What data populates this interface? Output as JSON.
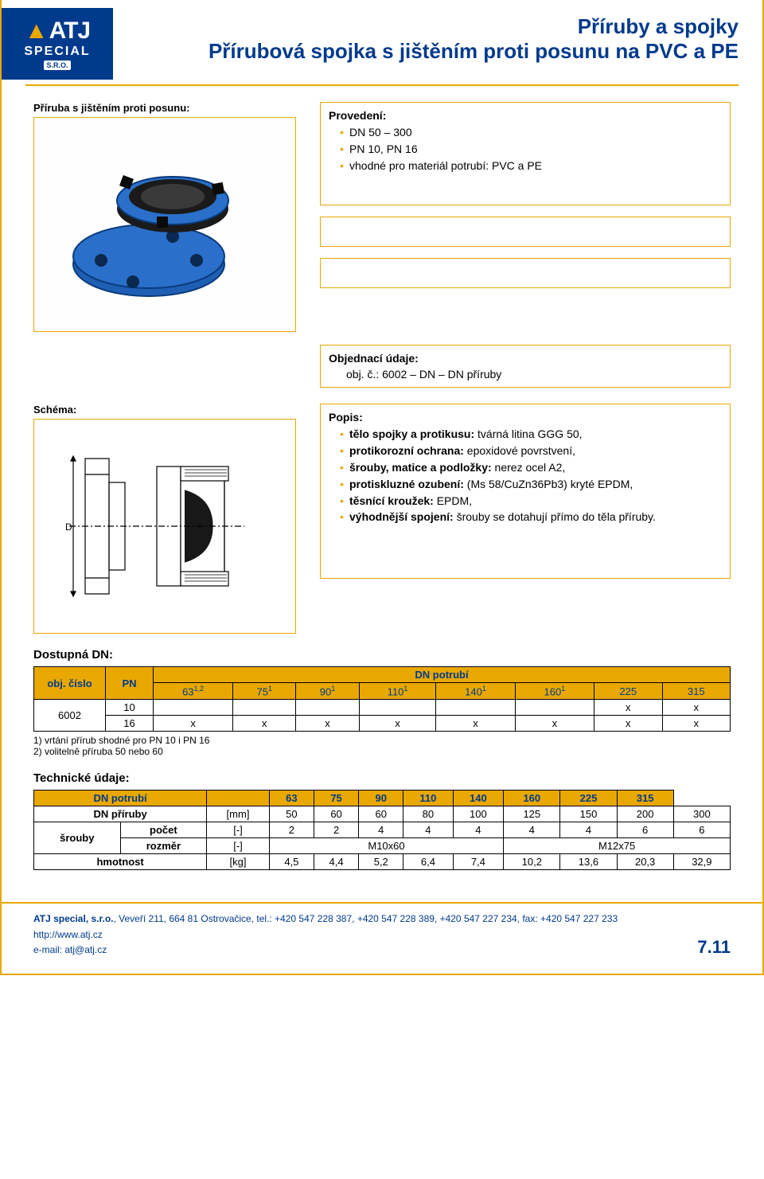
{
  "logo": {
    "brand_top": "ATJ",
    "brand_mid": "SPECIAL",
    "brand_sro": "S.R.O."
  },
  "header": {
    "title1": "Příruby a spojky",
    "title2": "Přírubová spojka s jištěním proti posunu na PVC a PE"
  },
  "product_image": {
    "label": "Příruba s jištěním proti posunu:"
  },
  "provedeni": {
    "label": "Provedení:",
    "items": [
      "DN 50 – 300",
      "PN 10, PN 16",
      "vhodné pro materiál potrubí: PVC a PE"
    ]
  },
  "objednaci": {
    "label": "Objednací údaje:",
    "line": "obj. č.: 6002 – DN – DN příruby"
  },
  "schema": {
    "label": "Schéma:"
  },
  "popis": {
    "label": "Popis:",
    "items": [
      "<b>tělo spojky a protikusu:</b> tvárná litina GGG 50,",
      "<b>protikorozní ochrana:</b> epoxidové povrstvení,",
      "<b>šrouby, matice a podložky:</b> nerez ocel A2,",
      "<b>protiskluzné ozubení:</b> (Ms 58/CuZn36Pb3) kryté EPDM,",
      "<b>těsnící kroužek:</b> EPDM,",
      "<b>výhodnější spojení:</b> šrouby se dotahují přímo do těla příruby."
    ]
  },
  "dostupna": {
    "label": "Dostupná DN:",
    "headers": {
      "obj": "obj. číslo",
      "pn": "PN",
      "dnpot": "DN potrubí"
    },
    "cols": [
      "63<sup>1,2</sup>",
      "75<sup>1</sup>",
      "90<sup>1</sup>",
      "110<sup>1</sup>",
      "140<sup>1</sup>",
      "160<sup>1</sup>",
      "225",
      "315"
    ],
    "obj_val": "6002",
    "rows": [
      {
        "pn": "10",
        "cells": [
          "",
          "",
          "",
          "",
          "",
          "",
          "x",
          "x"
        ]
      },
      {
        "pn": "16",
        "cells": [
          "x",
          "x",
          "x",
          "x",
          "x",
          "x",
          "x",
          "x"
        ]
      }
    ],
    "footnotes": [
      "1) vrtání přírub shodné pro PN 10 i PN 16",
      "2) volitelně příruba 50 nebo 60"
    ]
  },
  "technicke": {
    "label": "Technické údaje:",
    "header_row": [
      "DN potrubí",
      "",
      "63",
      "75",
      "90",
      "110",
      "140",
      "160",
      "225",
      "315"
    ],
    "rows": [
      {
        "label": "DN příruby",
        "unit": "[mm]",
        "cells": [
          "50",
          "60",
          "60",
          "80",
          "100",
          "125",
          "150",
          "200",
          "300"
        ]
      },
      {
        "label_group": "šrouby",
        "label": "počet",
        "unit": "[-]",
        "cells": [
          "2",
          "2",
          "4",
          "4",
          "4",
          "4",
          "4",
          "6",
          "6"
        ]
      },
      {
        "label": "rozměr",
        "unit": "[-]",
        "span_cells": [
          {
            "text": "M10x60",
            "span": 5
          },
          {
            "text": "M12x75",
            "span": 4
          }
        ]
      },
      {
        "label": "hmotnost",
        "unit": "[kg]",
        "cells": [
          "4,5",
          "4,4",
          "5,2",
          "6,4",
          "7,4",
          "10,2",
          "13,6",
          "20,3",
          "32,9"
        ]
      }
    ]
  },
  "footer": {
    "line1": "<b>ATJ special, s.r.o.</b>, Veveří 211, 664 81 Ostrovačice, tel.: +420 547 228 387, +420 547 228 389, +420 547 227 234, fax: +420 547 227 233",
    "line2": "http://www.atj.cz",
    "line3": "e-mail: atj@atj.cz",
    "pagenum": "7.11"
  },
  "colors": {
    "accent": "#e9a800",
    "brand": "#003a8c",
    "flange_blue": "#1e5fb4"
  }
}
